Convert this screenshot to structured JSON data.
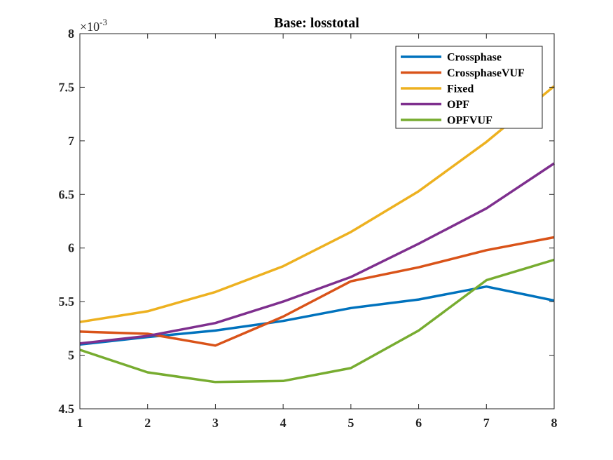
{
  "chart_data": {
    "type": "line",
    "title": "Base: losstotal",
    "xlabel": "",
    "ylabel": "",
    "y_exponent_label": "×10",
    "y_exponent_power": "-3",
    "x": [
      1,
      2,
      3,
      4,
      5,
      6,
      7,
      8
    ],
    "xlim": [
      1,
      8
    ],
    "ylim": [
      4.5,
      8
    ],
    "x_ticks": [
      "1",
      "2",
      "3",
      "4",
      "5",
      "6",
      "7",
      "8"
    ],
    "y_ticks": [
      "4.5",
      "5",
      "5.5",
      "6",
      "6.5",
      "7",
      "7.5",
      "8"
    ],
    "grid": false,
    "legend_position": "top-right",
    "series": [
      {
        "name": "Crossphase",
        "color": "#0072BD",
        "values": [
          5.1,
          5.17,
          5.23,
          5.32,
          5.44,
          5.52,
          5.64,
          5.51
        ]
      },
      {
        "name": "CrossphaseVUF",
        "color": "#D95319",
        "values": [
          5.22,
          5.2,
          5.09,
          5.36,
          5.69,
          5.82,
          5.98,
          6.1
        ]
      },
      {
        "name": "Fixed",
        "color": "#EDB120",
        "values": [
          5.31,
          5.41,
          5.59,
          5.83,
          6.15,
          6.53,
          6.99,
          7.51
        ]
      },
      {
        "name": "OPF",
        "color": "#7E2F8E",
        "values": [
          5.11,
          5.18,
          5.3,
          5.5,
          5.73,
          6.04,
          6.37,
          6.79
        ]
      },
      {
        "name": "OPFVUF",
        "color": "#77AC30",
        "values": [
          5.05,
          4.84,
          4.75,
          4.76,
          4.88,
          5.23,
          5.7,
          5.89
        ]
      }
    ]
  }
}
